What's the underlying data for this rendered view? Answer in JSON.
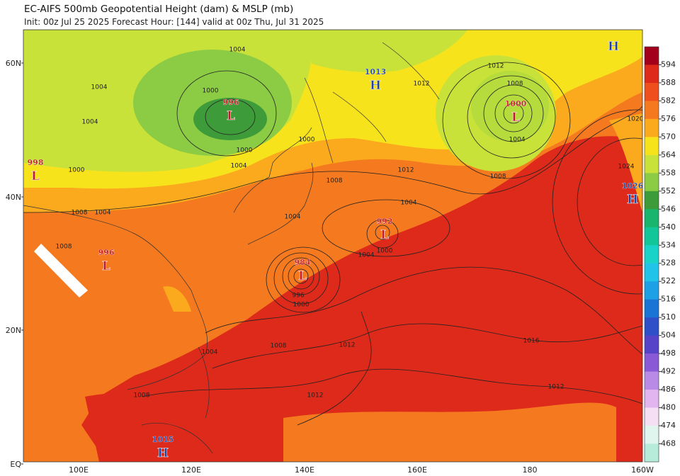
{
  "header": {
    "title": "EC-AIFS 500mb Geopotential Height (dam) & MSLP (mb)",
    "subtitle": "Init: 00z Jul 25 2025   Forecast Hour: [144]   valid at 00z Thu, Jul 31 2025"
  },
  "map": {
    "lat_labels": [
      "60N",
      "40N",
      "20N",
      "EQ"
    ],
    "lon_labels": [
      "100E",
      "120E",
      "140E",
      "160E",
      "180",
      "160W"
    ],
    "centers": [
      {
        "letter": "L",
        "value": "996"
      },
      {
        "letter": "H",
        "value": "1013"
      },
      {
        "letter": "L",
        "value": "1000"
      },
      {
        "letter": "H",
        "value": "1026"
      },
      {
        "letter": "H",
        "value": ""
      },
      {
        "letter": "L",
        "value": "998"
      },
      {
        "letter": "L",
        "value": "996"
      },
      {
        "letter": "L",
        "value": "984"
      },
      {
        "letter": "L",
        "value": "992"
      },
      {
        "letter": "H",
        "value": "1015"
      }
    ],
    "isobar_labels": [
      "1004",
      "1000",
      "1000",
      "1004",
      "1000",
      "1012",
      "1008",
      "1004",
      "1004",
      "1004",
      "1000",
      "996",
      "1000",
      "1008",
      "1012",
      "1004",
      "1008",
      "1012",
      "1016",
      "1012",
      "1008",
      "1012",
      "1008",
      "1004",
      "1024",
      "1020",
      "1012",
      "1004",
      "1004",
      "1000",
      "1008",
      "1004",
      "1008"
    ]
  },
  "colorbar": {
    "levels": [
      594,
      588,
      582,
      576,
      570,
      564,
      558,
      552,
      546,
      540,
      534,
      528,
      522,
      516,
      510,
      504,
      498,
      492,
      486,
      480,
      474,
      468
    ],
    "colors": [
      "#a3001c",
      "#dd2a1a",
      "#ee4f1d",
      "#f57a1f",
      "#fbaa1d",
      "#f7e31c",
      "#c9e23a",
      "#8ccb44",
      "#3d9b3a",
      "#19b56f",
      "#13c69a",
      "#1ad3c8",
      "#22c3e8",
      "#1ea0e6",
      "#1a74d6",
      "#2f4fc9",
      "#5743c7",
      "#8a5ad6",
      "#b98be6",
      "#e3b5f0",
      "#f5dff5",
      "#dff5ee",
      "#b6ecd9"
    ]
  }
}
